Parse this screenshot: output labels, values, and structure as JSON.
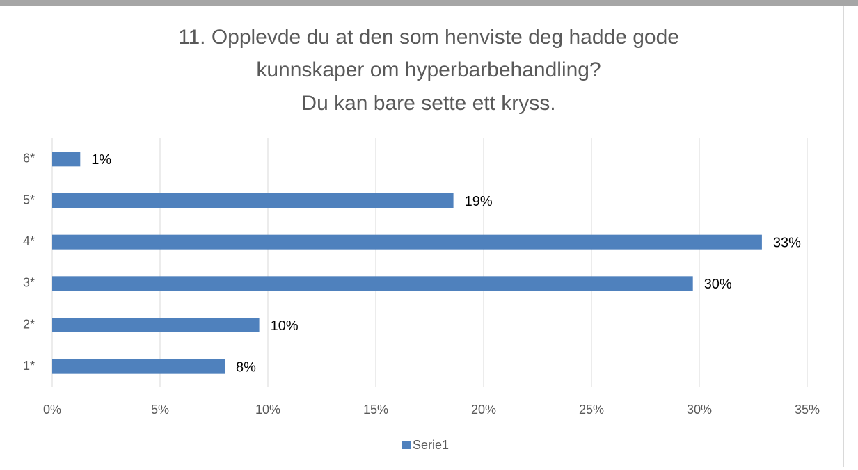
{
  "chart_data": {
    "type": "bar",
    "orientation": "horizontal",
    "title": [
      "11. Opplevde du at den som henviste deg hadde gode",
      "kunnskaper om hyperbarbehandling?",
      "Du kan bare sette ett kryss."
    ],
    "categories": [
      "1*",
      "2*",
      "3*",
      "4*",
      "5*",
      "6*"
    ],
    "series": [
      {
        "name": "Serie1",
        "color": "#4f81bd",
        "values": [
          8.0,
          9.6,
          29.7,
          32.9,
          18.6,
          1.3
        ],
        "value_labels": [
          "8%",
          "10%",
          "30%",
          "33%",
          "19%",
          "1%"
        ]
      }
    ],
    "xlim": [
      0,
      35
    ],
    "xticks": [
      {
        "value": 0,
        "label": "0%"
      },
      {
        "value": 5,
        "label": "5%"
      },
      {
        "value": 10,
        "label": "10%"
      },
      {
        "value": 15,
        "label": "15%"
      },
      {
        "value": 20,
        "label": "20%"
      },
      {
        "value": 25,
        "label": "25%"
      },
      {
        "value": 30,
        "label": "30%"
      },
      {
        "value": 35,
        "label": "35%"
      }
    ],
    "grid": true,
    "legend": "bottom"
  }
}
